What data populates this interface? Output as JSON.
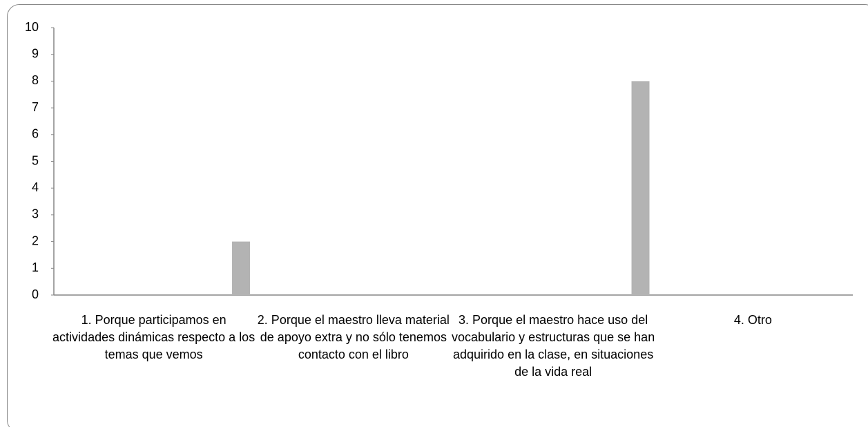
{
  "chart_data": {
    "type": "bar",
    "categories": [
      "1. Porque participamos en actividades dinámicas respecto a los temas que vemos",
      "2. Porque el maestro lleva material de apoyo extra y no sólo tenemos contacto con el libro",
      "3. Porque el maestro hace uso del vocabulario y estructuras que se han adquirido en la clase, en situaciones de la vida real",
      "4. Otro"
    ],
    "values": [
      2,
      0,
      8,
      0
    ],
    "color": "#b3b3b3",
    "ylim": [
      0,
      10
    ],
    "yticks": [
      0,
      1,
      2,
      3,
      4,
      5,
      6,
      7,
      8,
      9,
      10
    ],
    "grid": false
  }
}
